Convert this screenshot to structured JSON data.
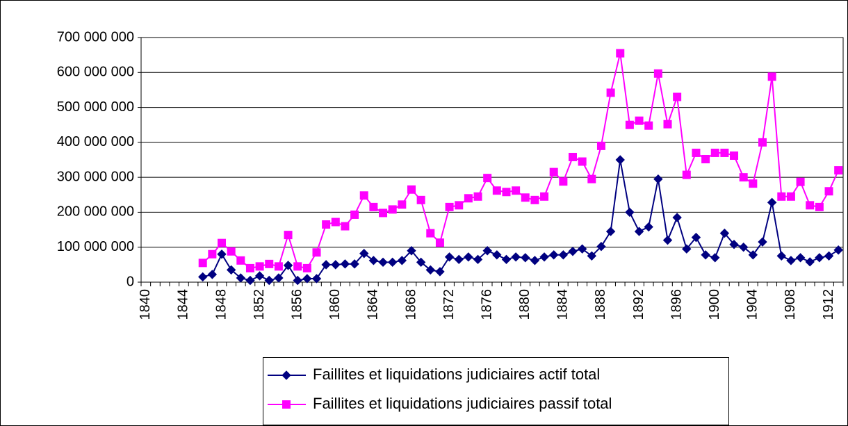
{
  "chart_data": {
    "type": "line",
    "categories": [
      "1840",
      null,
      null,
      null,
      "1844",
      null,
      null,
      null,
      "1848",
      null,
      null,
      null,
      "1852",
      null,
      null,
      null,
      "1856",
      null,
      null,
      null,
      "1860",
      null,
      null,
      null,
      "1864",
      null,
      null,
      null,
      "1868",
      null,
      null,
      null,
      "1872",
      null,
      null,
      null,
      "1876",
      null,
      null,
      null,
      "1880",
      null,
      null,
      null,
      "1884",
      null,
      null,
      null,
      "1888",
      null,
      null,
      null,
      "1892",
      null,
      null,
      null,
      "1896",
      null,
      null,
      null,
      "1900",
      null,
      null,
      null,
      "1904",
      null,
      null,
      null,
      "1908",
      null,
      null,
      null,
      "1912",
      null
    ],
    "series": [
      {
        "name": "Faillites et liquidations judiciaires actif total",
        "color": "#000080",
        "marker": "diamond",
        "values": [
          null,
          null,
          null,
          null,
          null,
          null,
          15000000,
          22000000,
          80000000,
          35000000,
          12000000,
          5000000,
          18000000,
          5000000,
          12000000,
          48000000,
          5000000,
          10000000,
          10000000,
          50000000,
          50000000,
          52000000,
          52000000,
          82000000,
          62000000,
          57000000,
          57000000,
          62000000,
          90000000,
          57000000,
          35000000,
          30000000,
          72000000,
          65000000,
          72000000,
          65000000,
          90000000,
          78000000,
          65000000,
          72000000,
          70000000,
          62000000,
          72000000,
          78000000,
          78000000,
          88000000,
          95000000,
          75000000,
          102000000,
          145000000,
          350000000,
          200000000,
          145000000,
          158000000,
          295000000,
          120000000,
          185000000,
          95000000,
          128000000,
          78000000,
          70000000,
          140000000,
          108000000,
          100000000,
          78000000,
          115000000,
          228000000,
          75000000,
          62000000,
          70000000,
          58000000,
          70000000,
          75000000,
          92000000
        ]
      },
      {
        "name": "Faillites et liquidations judiciaires passif total",
        "color": "#ff00ff",
        "marker": "square",
        "values": [
          null,
          null,
          null,
          null,
          null,
          null,
          55000000,
          80000000,
          112000000,
          88000000,
          62000000,
          40000000,
          45000000,
          52000000,
          45000000,
          135000000,
          45000000,
          40000000,
          85000000,
          165000000,
          172000000,
          160000000,
          193000000,
          248000000,
          215000000,
          198000000,
          208000000,
          222000000,
          265000000,
          235000000,
          140000000,
          113000000,
          215000000,
          220000000,
          240000000,
          245000000,
          298000000,
          262000000,
          258000000,
          262000000,
          242000000,
          235000000,
          245000000,
          315000000,
          288000000,
          358000000,
          345000000,
          295000000,
          390000000,
          542000000,
          655000000,
          450000000,
          462000000,
          448000000,
          597000000,
          452000000,
          530000000,
          307000000,
          370000000,
          352000000,
          370000000,
          370000000,
          362000000,
          300000000,
          282000000,
          400000000,
          588000000,
          245000000,
          245000000,
          287000000,
          220000000,
          215000000,
          260000000,
          320000000
        ]
      }
    ],
    "ylim": [
      0,
      700000000
    ],
    "yticks": [
      0,
      {
        "value": 100000000,
        "label": "100 000 000"
      },
      {
        "value": 200000000,
        "label": "200 000 000"
      },
      {
        "value": 300000000,
        "label": "300 000 000"
      },
      {
        "value": 400000000,
        "label": "400 000 000"
      },
      {
        "value": 500000000,
        "label": "500 000 000"
      },
      {
        "value": 600000000,
        "label": "600 000 000"
      },
      {
        "value": 700000000,
        "label": "700 000 000"
      }
    ],
    "grid": true,
    "legend": "bottom"
  }
}
